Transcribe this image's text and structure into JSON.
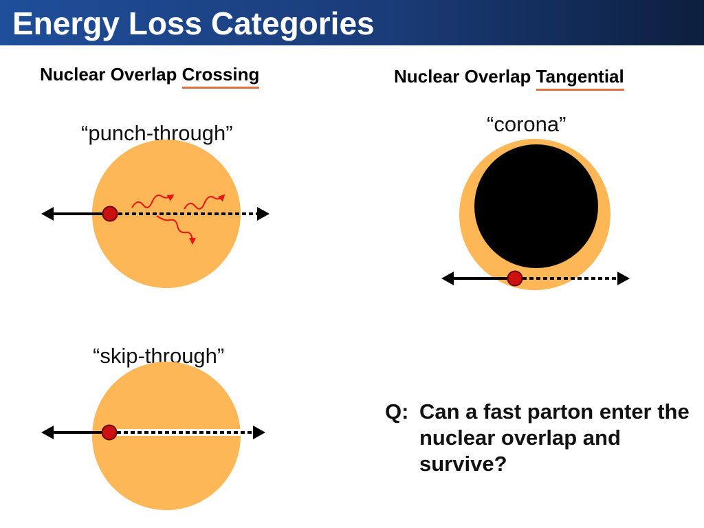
{
  "title": "Energy Loss Categories",
  "headings": {
    "crossing_prefix": "Nuclear Overlap ",
    "crossing_emph": "Crossing",
    "tangential_prefix": "Nuclear Overlap ",
    "tangential_emph": "Tangential"
  },
  "diagrams": {
    "punch_through": "“punch-through”",
    "corona": "“corona”",
    "skip_through": "“skip-through”"
  },
  "question": {
    "prefix": "Q:",
    "text": "Can a fast parton enter the nuclear overlap and survive?"
  },
  "colors": {
    "title_bar": "#1f4e9a",
    "nucleus": "#fdb757",
    "underline": "#e07040",
    "parton": "#cc1111",
    "radiation": "#ee1111"
  }
}
